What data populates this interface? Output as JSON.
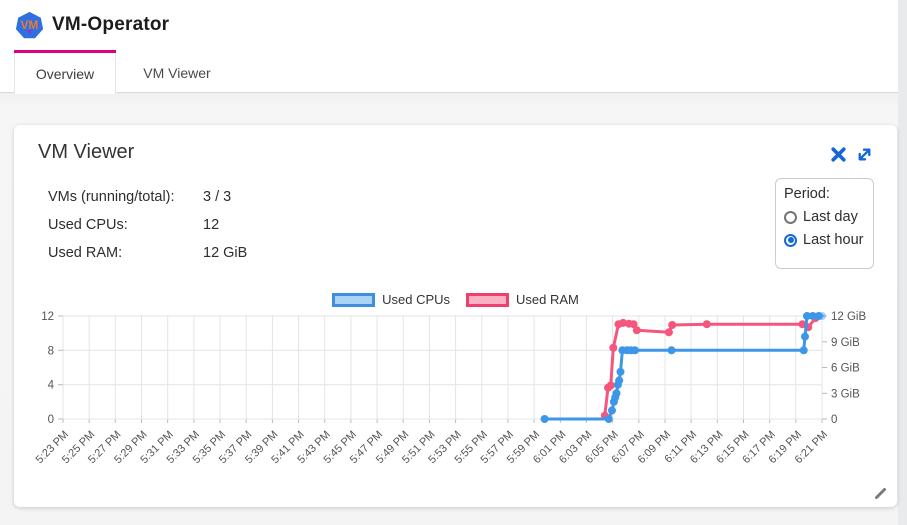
{
  "header": {
    "app_title": "VM-Operator"
  },
  "tabs": [
    {
      "label": "Overview",
      "active": true
    },
    {
      "label": "VM Viewer",
      "active": false
    }
  ],
  "panel": {
    "title": "VM Viewer",
    "stats": [
      {
        "label": "VMs (running/total):",
        "value": "3 / 3"
      },
      {
        "label": "Used CPUs:",
        "value": "12"
      },
      {
        "label": "Used RAM:",
        "value": "12 GiB"
      }
    ],
    "period": {
      "label": "Period:",
      "options": [
        {
          "label": "Last day",
          "selected": false
        },
        {
          "label": "Last hour",
          "selected": true
        }
      ]
    }
  },
  "colors": {
    "accent_pink": "#e0007b",
    "icon_blue": "#1566d6",
    "cpu_blue": "#3d96e8",
    "ram_pink": "#f4567d"
  },
  "chart_data": {
    "type": "line",
    "title": "",
    "grid": true,
    "legend_position": "top",
    "legend": [
      {
        "name": "Used CPUs",
        "color": "#3f8fe0",
        "fill": "#abd3f6"
      },
      {
        "name": "Used RAM",
        "color": "#ee3f6d",
        "fill": "#f9b1c3"
      }
    ],
    "x_axis": {
      "unit": "time (2-minute ticks)",
      "tick_labels": [
        "5:23 PM",
        "5:25 PM",
        "5:27 PM",
        "5:29 PM",
        "5:31 PM",
        "5:33 PM",
        "5:35 PM",
        "5:37 PM",
        "5:39 PM",
        "5:41 PM",
        "5:43 PM",
        "5:45 PM",
        "5:47 PM",
        "5:49 PM",
        "5:51 PM",
        "5:53 PM",
        "5:55 PM",
        "5:57 PM",
        "5:59 PM",
        "6:01 PM",
        "6:03 PM",
        "6:05 PM",
        "6:07 PM",
        "6:09 PM",
        "6:11 PM",
        "6:13 PM",
        "6:15 PM",
        "6:17 PM",
        "6:19 PM",
        "6:21 PM"
      ]
    },
    "y_axis_left": {
      "ticks": [
        0,
        4,
        8,
        12
      ],
      "tick_labels": [
        "0",
        "4",
        "8",
        "12"
      ],
      "range": [
        0,
        12
      ]
    },
    "y_axis_right": {
      "ticks": [
        0,
        3,
        6,
        9,
        12
      ],
      "tick_labels": [
        "0",
        "3 GiB",
        "6 GiB",
        "9 GiB",
        "12 GiB"
      ],
      "range": [
        0,
        12
      ]
    },
    "series": [
      {
        "name": "Used RAM",
        "axis": "right",
        "color": "#f4567d",
        "unit": "GiB",
        "points": [
          [
            41.4,
            0.4
          ],
          [
            41.65,
            3.65
          ],
          [
            41.85,
            3.9
          ],
          [
            42.05,
            8.3
          ],
          [
            42.45,
            11.05
          ],
          [
            42.8,
            11.2
          ],
          [
            43.25,
            11.1
          ],
          [
            43.6,
            11.05
          ],
          [
            43.85,
            10.35
          ],
          [
            46.3,
            10.1
          ],
          [
            46.55,
            10.95
          ],
          [
            49.2,
            11.05
          ],
          [
            56.5,
            11.05
          ],
          [
            56.95,
            10.7
          ],
          [
            57.5,
            11.75
          ]
        ]
      },
      {
        "name": "Used CPUs",
        "axis": "left",
        "color": "#3d96e8",
        "unit": "CPUs",
        "faded_last": true,
        "points": [
          [
            36.8,
            0
          ],
          [
            41.7,
            0
          ],
          [
            41.95,
            1
          ],
          [
            42.1,
            2
          ],
          [
            42.2,
            2.5
          ],
          [
            42.3,
            3
          ],
          [
            42.4,
            4
          ],
          [
            42.5,
            4.5
          ],
          [
            42.6,
            5.5
          ],
          [
            42.75,
            8
          ],
          [
            43.1,
            8
          ],
          [
            43.4,
            8
          ],
          [
            43.7,
            8
          ],
          [
            46.5,
            8
          ],
          [
            56.6,
            8
          ],
          [
            56.7,
            9.6
          ],
          [
            56.85,
            12
          ],
          [
            57.3,
            12
          ],
          [
            57.75,
            12
          ],
          [
            58.0,
            12
          ]
        ]
      }
    ]
  }
}
